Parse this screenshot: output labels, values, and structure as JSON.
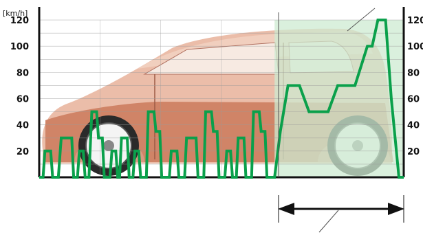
{
  "chart_data": {
    "type": "line",
    "title": "",
    "xlabel": "",
    "ylabel": "[km/h]",
    "unit_label": "[km/h]",
    "ylim": [
      0,
      130
    ],
    "yticks": [
      20,
      40,
      60,
      80,
      100,
      120
    ],
    "ytick_labels": [
      "20",
      "40",
      "60",
      "80",
      "100",
      "120"
    ],
    "grid": true,
    "colors": {
      "line": "#0aa04b",
      "extra_urban_region": "#cdebd2",
      "axis": "#111111",
      "car_body": "#c97a5c"
    },
    "series": [
      {
        "name": "",
        "points": [
          [
            0,
            0
          ],
          [
            4,
            0
          ],
          [
            6,
            20
          ],
          [
            12,
            20
          ],
          [
            14,
            0
          ],
          [
            20,
            0
          ],
          [
            23,
            30
          ],
          [
            34,
            30
          ],
          [
            36,
            0
          ],
          [
            40,
            0
          ],
          [
            42,
            20
          ],
          [
            46,
            20
          ],
          [
            48,
            0
          ],
          [
            52,
            0
          ],
          [
            55,
            50
          ],
          [
            60,
            50
          ],
          [
            62,
            30
          ],
          [
            66,
            30
          ],
          [
            68,
            0
          ],
          [
            74,
            0
          ],
          [
            76,
            20
          ],
          [
            80,
            20
          ],
          [
            82,
            0
          ],
          [
            84,
            0
          ],
          [
            86,
            30
          ],
          [
            92,
            30
          ],
          [
            94,
            0
          ],
          [
            98,
            0
          ],
          [
            100,
            20
          ],
          [
            104,
            20
          ],
          [
            106,
            0
          ],
          [
            112,
            0
          ],
          [
            114,
            50
          ],
          [
            120,
            50
          ],
          [
            122,
            35
          ],
          [
            126,
            35
          ],
          [
            128,
            0
          ],
          [
            136,
            0
          ],
          [
            138,
            20
          ],
          [
            144,
            20
          ],
          [
            146,
            0
          ],
          [
            152,
            0
          ],
          [
            154,
            30
          ],
          [
            164,
            30
          ],
          [
            166,
            0
          ],
          [
            172,
            0
          ],
          [
            174,
            50
          ],
          [
            180,
            50
          ],
          [
            182,
            35
          ],
          [
            186,
            35
          ],
          [
            188,
            0
          ],
          [
            194,
            0
          ],
          [
            196,
            20
          ],
          [
            200,
            20
          ],
          [
            202,
            0
          ],
          [
            206,
            0
          ],
          [
            208,
            30
          ],
          [
            214,
            30
          ],
          [
            216,
            0
          ],
          [
            222,
            0
          ],
          [
            224,
            50
          ],
          [
            230,
            50
          ],
          [
            232,
            35
          ],
          [
            236,
            35
          ],
          [
            238,
            0
          ],
          [
            246,
            0
          ],
          [
            252,
            35
          ],
          [
            260,
            70
          ],
          [
            272,
            70
          ],
          [
            282,
            50
          ],
          [
            302,
            50
          ],
          [
            312,
            70
          ],
          [
            330,
            70
          ],
          [
            343,
            100
          ],
          [
            348,
            100
          ],
          [
            354,
            120
          ],
          [
            362,
            120
          ],
          [
            368,
            60
          ],
          [
            376,
            0
          ],
          [
            381,
            0
          ]
        ]
      }
    ],
    "segments": {
      "extra_urban_start": 246,
      "end": 381
    }
  }
}
